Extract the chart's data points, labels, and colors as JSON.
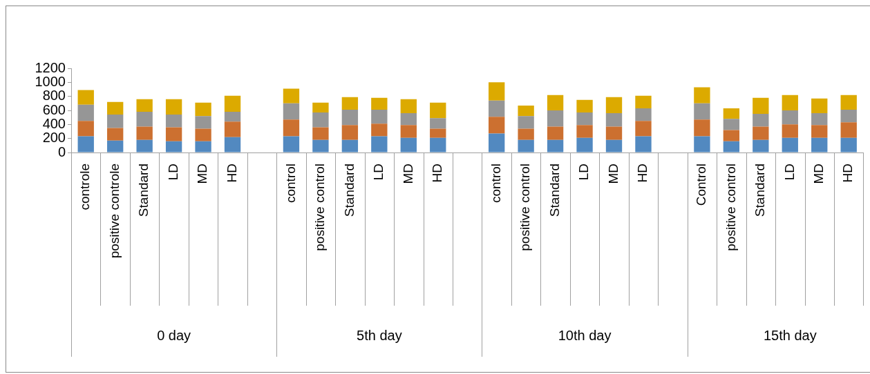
{
  "chart_data": {
    "type": "bar",
    "stacked": true,
    "categories": [
      "controle",
      "positive controle",
      "Standard",
      "LD",
      "MD",
      "HD",
      null,
      "control",
      "positive control",
      "Standard",
      "LD",
      "MD",
      "HD",
      null,
      "control",
      "positive control",
      "Standard",
      "LD",
      "MD",
      "HD",
      null,
      "Control",
      "positive control",
      "Standard",
      "LD",
      "MD",
      "HD"
    ],
    "series": [
      {
        "color": "#5289c0",
        "values": [
          230,
          170,
          180,
          160,
          160,
          220,
          null,
          230,
          180,
          180,
          230,
          210,
          210,
          null,
          270,
          180,
          180,
          210,
          180,
          230,
          null,
          230,
          160,
          180,
          210,
          210,
          210
        ]
      },
      {
        "color": "#cc7030",
        "values": [
          220,
          180,
          190,
          200,
          180,
          220,
          null,
          240,
          180,
          210,
          180,
          180,
          130,
          null,
          240,
          160,
          190,
          180,
          190,
          220,
          null,
          240,
          160,
          190,
          190,
          180,
          220
        ]
      },
      {
        "color": "#969696",
        "values": [
          230,
          190,
          210,
          180,
          180,
          140,
          null,
          230,
          210,
          220,
          200,
          170,
          150,
          null,
          230,
          180,
          230,
          180,
          190,
          180,
          null,
          230,
          160,
          180,
          200,
          170,
          180
        ]
      },
      {
        "color": "#dcaa00",
        "values": [
          210,
          180,
          180,
          220,
          190,
          230,
          null,
          210,
          140,
          180,
          170,
          200,
          220,
          null,
          260,
          150,
          220,
          180,
          230,
          180,
          null,
          230,
          150,
          230,
          220,
          210,
          210
        ]
      }
    ],
    "ylim": [
      0,
      1200
    ],
    "yticks": [
      0,
      200,
      400,
      600,
      800,
      1000,
      1200
    ],
    "annotations": [
      "0 day",
      "5th day",
      "10th day",
      "15th day"
    ],
    "legend": false
  }
}
